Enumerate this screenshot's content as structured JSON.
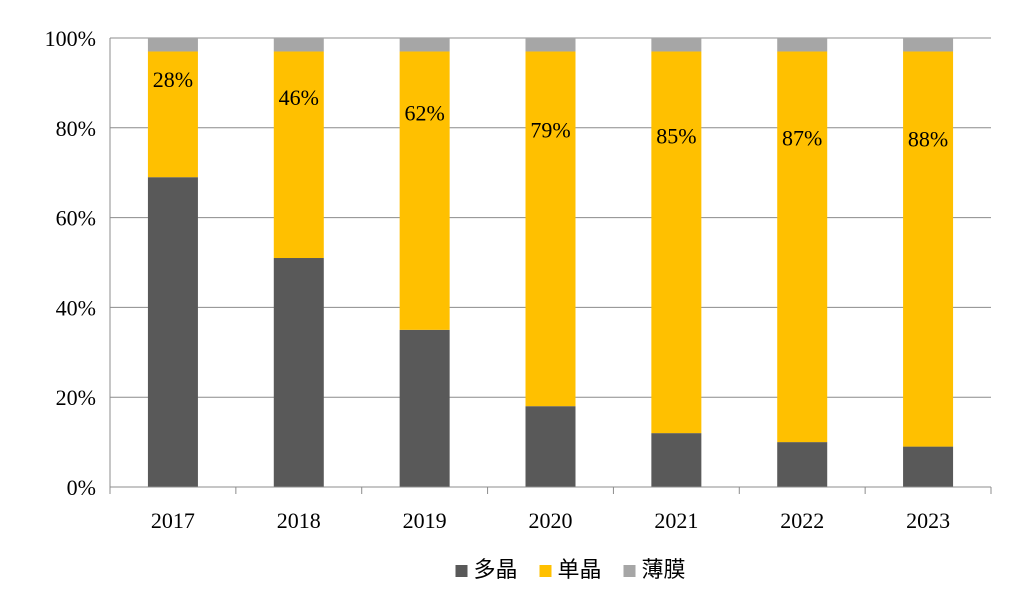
{
  "chart_data": {
    "type": "bar",
    "stacked": true,
    "categories": [
      "2017",
      "2018",
      "2019",
      "2020",
      "2021",
      "2022",
      "2023"
    ],
    "series": [
      {
        "name": "多晶",
        "color": "#595959",
        "values": [
          69,
          51,
          35,
          18,
          12,
          10,
          9
        ]
      },
      {
        "name": "单晶",
        "color": "#FFC000",
        "values": [
          28,
          46,
          62,
          79,
          85,
          87,
          88
        ]
      },
      {
        "name": "薄膜",
        "color": "#A6A6A6",
        "values": [
          3,
          3,
          3,
          3,
          3,
          3,
          3
        ]
      }
    ],
    "data_labels": [
      "28%",
      "46%",
      "62%",
      "79%",
      "85%",
      "87%",
      "88%"
    ],
    "y_ticks": [
      "0%",
      "20%",
      "40%",
      "60%",
      "80%",
      "100%"
    ],
    "ylim": [
      0,
      100
    ],
    "grid": true,
    "legend_position": "bottom-center"
  }
}
